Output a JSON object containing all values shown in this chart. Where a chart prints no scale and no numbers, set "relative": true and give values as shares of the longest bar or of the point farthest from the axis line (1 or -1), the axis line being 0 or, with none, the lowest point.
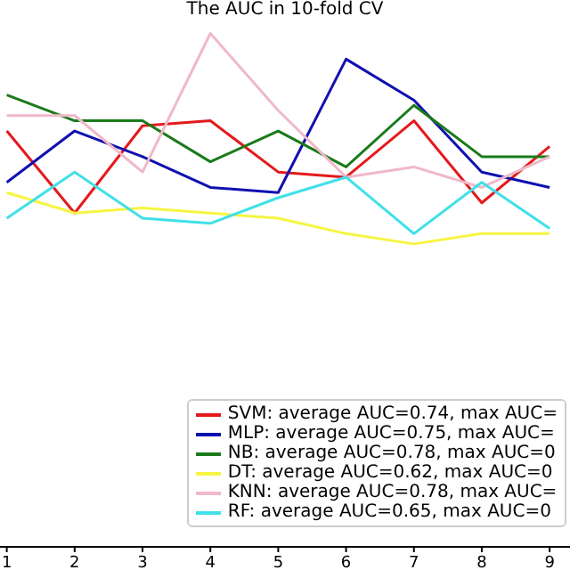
{
  "chart_data": {
    "type": "line",
    "title": "The AUC in 10-fold CV",
    "relative": true,
    "x": [
      1,
      2,
      3,
      4,
      5,
      6,
      7,
      8,
      9
    ],
    "xlim": [
      0.9,
      9.3
    ],
    "xticks": [
      1,
      2,
      3,
      4,
      5,
      6,
      7,
      8,
      9
    ],
    "legend": "bottom right",
    "marker": "none",
    "line_style": "solid",
    "tick_labels": "x",
    "series": [
      {
        "name": "SVM: average AUC=0.74, max AUC=",
        "color": "#e41a1c",
        "values": [
          0.81,
          0.65,
          0.82,
          0.83,
          0.73,
          0.72,
          0.83,
          0.67,
          0.78
        ]
      },
      {
        "name": "MLP: average AUC=0.75, max AUC=",
        "color": "#1010b0",
        "values": [
          0.71,
          0.81,
          0.76,
          0.7,
          0.69,
          0.95,
          0.87,
          0.73,
          0.7
        ]
      },
      {
        "name": "NB: average AUC=0.78, max AUC=0",
        "color": "#1a7a1a",
        "values": [
          0.88,
          0.83,
          0.83,
          0.75,
          0.81,
          0.74,
          0.86,
          0.76,
          0.76
        ]
      },
      {
        "name": "DT: average AUC=0.62, max AUC=0",
        "color": "#f5f542",
        "values": [
          0.69,
          0.65,
          0.66,
          0.65,
          0.64,
          0.61,
          0.59,
          0.61,
          0.61
        ]
      },
      {
        "name": "KNN: average AUC=0.78, max AUC=",
        "color": "#f0b8c8",
        "values": [
          0.84,
          0.84,
          0.73,
          1,
          0.85,
          0.72,
          0.74,
          0.7,
          0.76
        ]
      },
      {
        "name": "RF: average AUC=0.65, max AUC=0",
        "color": "#40e0e8",
        "values": [
          0.64,
          0.73,
          0.64,
          0.63,
          0.68,
          0.72,
          0.61,
          0.71,
          0.62
        ]
      }
    ]
  }
}
